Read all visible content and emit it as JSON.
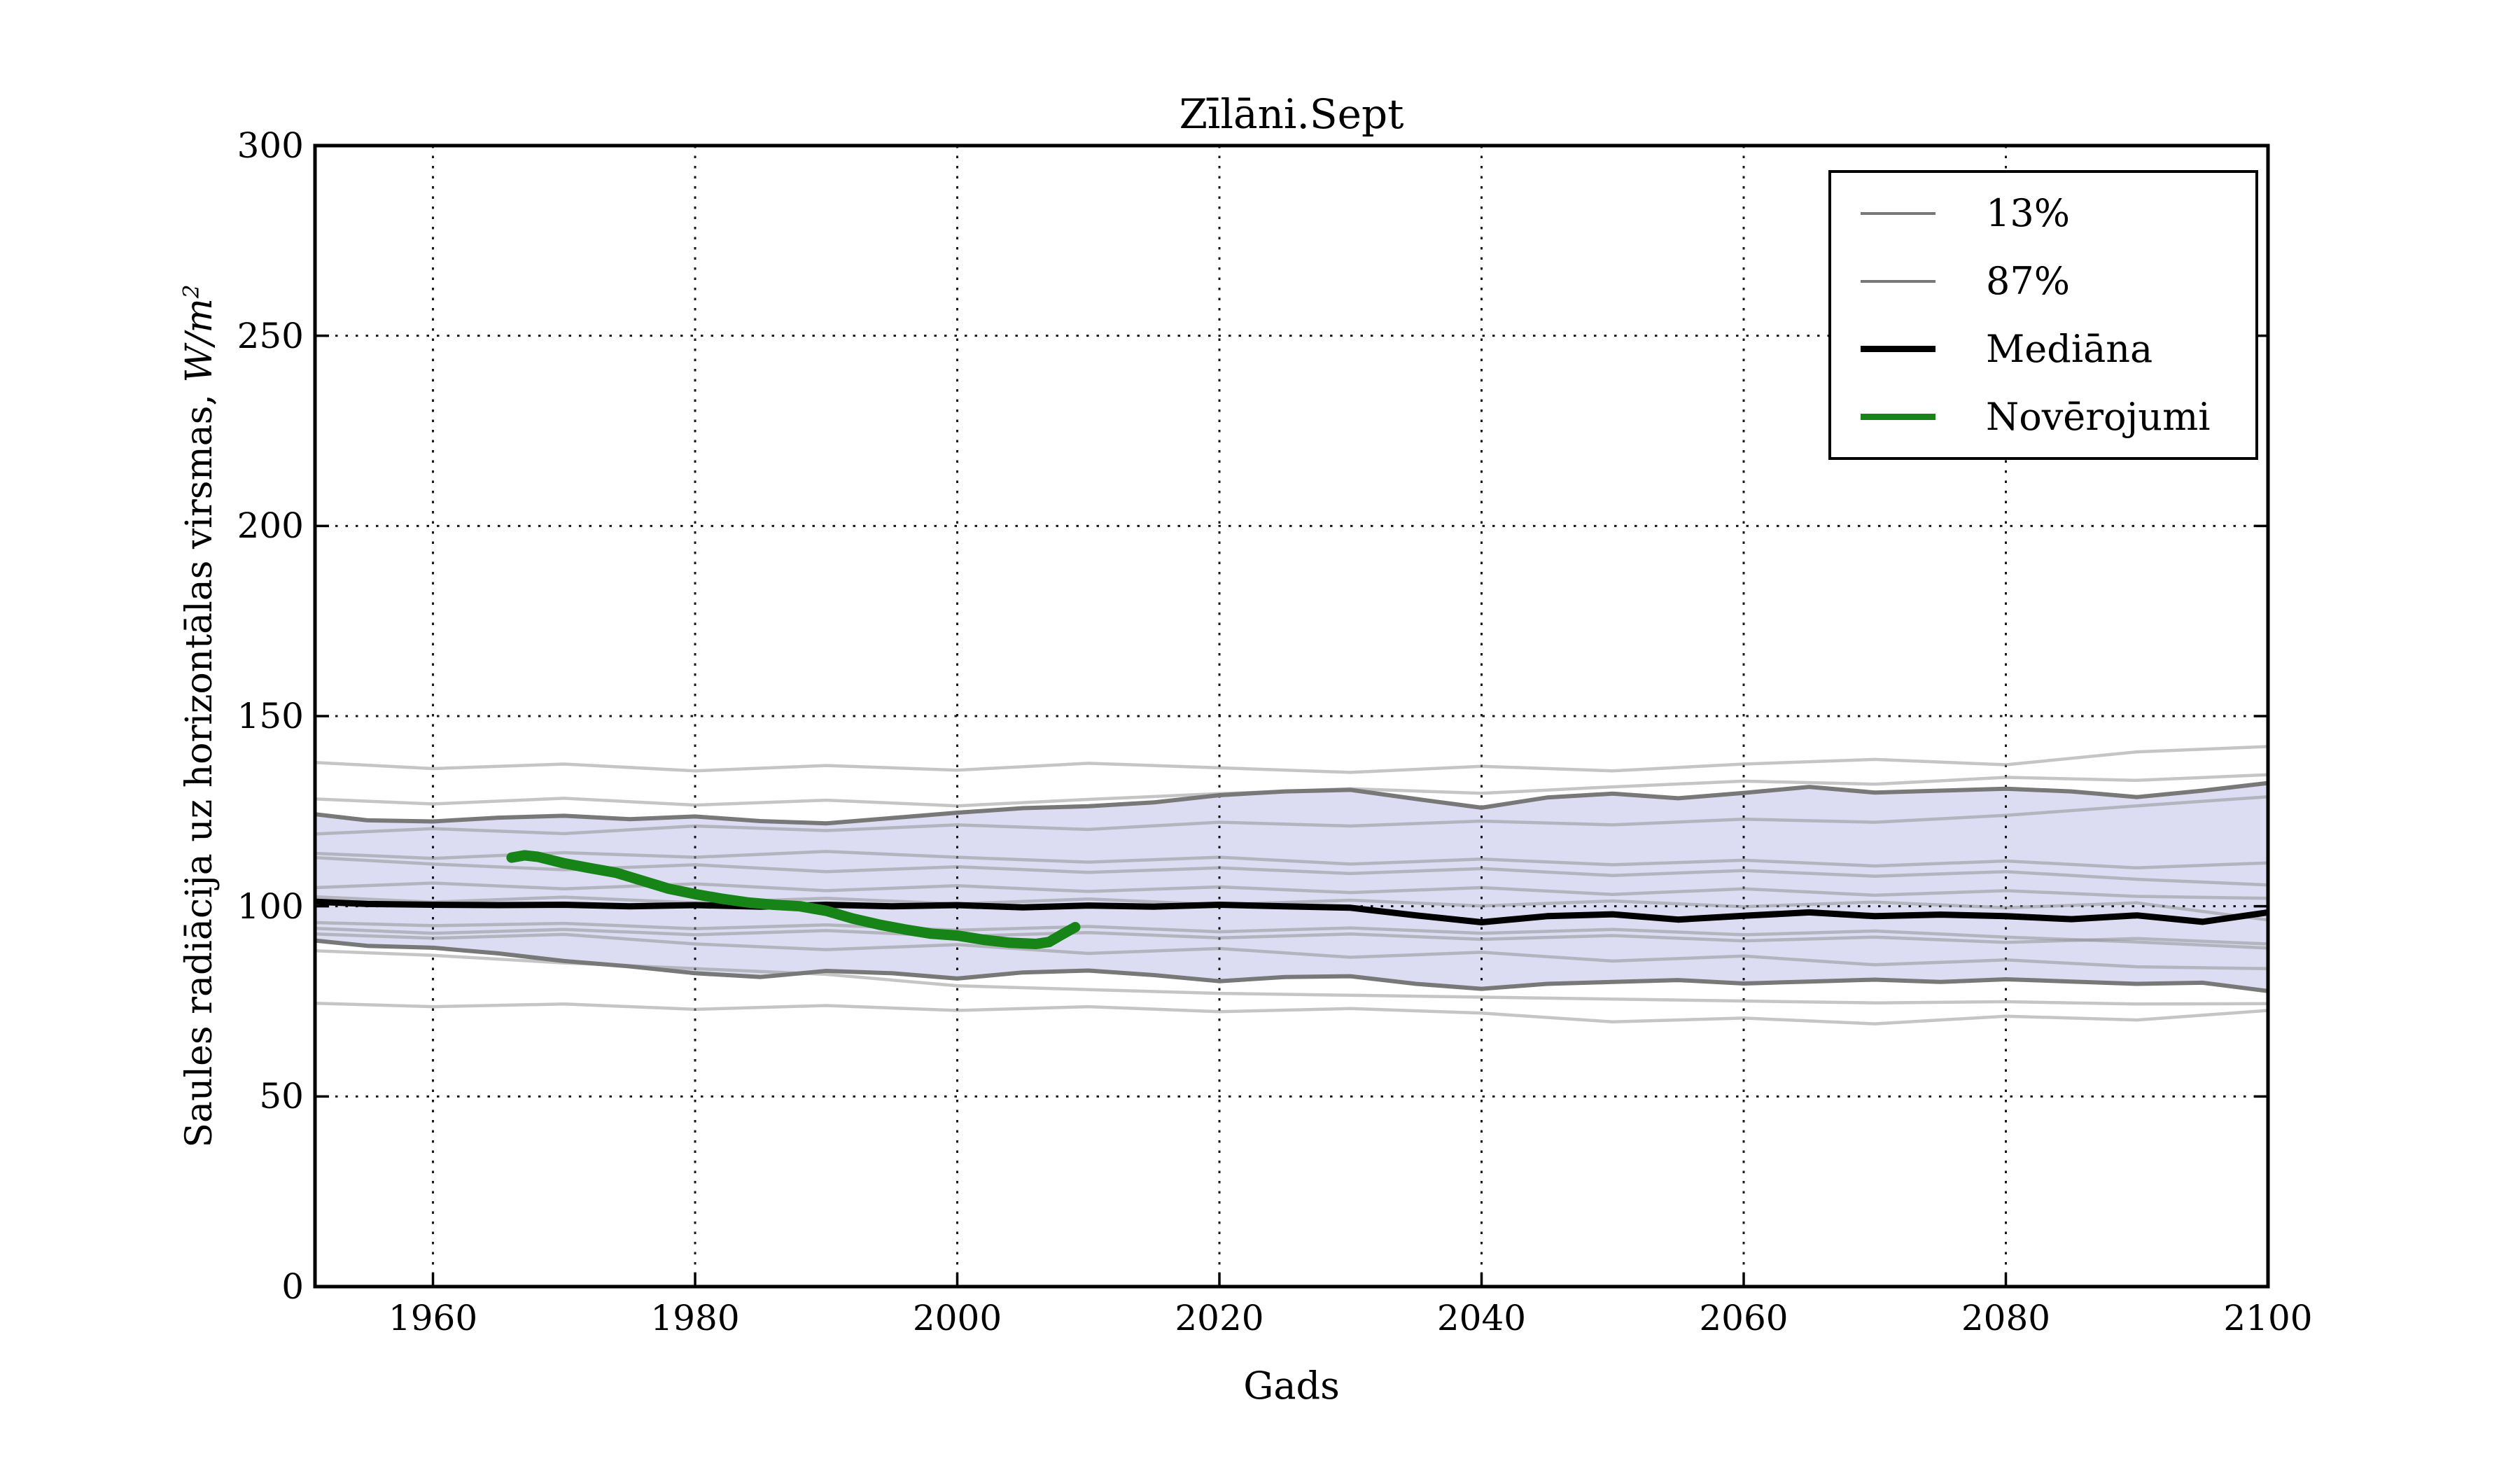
{
  "figure": {
    "title": "Zīlāni.Sept",
    "x_axis_label": "Gads",
    "y_axis_label_text": "Saules radiācija uz horizontālas virsmas, ",
    "y_axis_label_unit": "W/m",
    "y_axis_label_exponent": "2"
  },
  "colors": {
    "background": "#ffffff",
    "band_fill": "#dcdcf2",
    "ensemble": "#8c8c8c",
    "percentile": "#787878",
    "median": "#000000",
    "observations": "#168416",
    "grid": "#000000",
    "spine": "#000000",
    "text": "#000000"
  },
  "legend": {
    "items": [
      {
        "label": "13%",
        "color": "#787878",
        "thickness": 4
      },
      {
        "label": "87%",
        "color": "#787878",
        "thickness": 4
      },
      {
        "label": "Mediāna",
        "color": "#000000",
        "thickness": 9
      },
      {
        "label": "Novērojumi",
        "color": "#168416",
        "thickness": 9
      }
    ]
  },
  "chart_data": {
    "type": "line",
    "title": "Zīlāni.Sept",
    "xlabel": "Gads",
    "ylabel": "Saules radiācija uz horizontālas virsmas, W/m²",
    "xlim": [
      1951,
      2100
    ],
    "ylim": [
      0,
      300
    ],
    "x_ticks": [
      1960,
      1980,
      2000,
      2020,
      2040,
      2060,
      2080,
      2100
    ],
    "y_ticks": [
      0,
      50,
      100,
      150,
      200,
      250,
      300
    ],
    "grid": true,
    "legend_position": "upper right",
    "band_between": [
      "13%",
      "87%"
    ],
    "series": [
      {
        "name": "13%",
        "role": "percentile_lower",
        "x": [
          1951,
          1955,
          1960,
          1965,
          1970,
          1975,
          1980,
          1985,
          1990,
          1995,
          2000,
          2005,
          2010,
          2015,
          2020,
          2025,
          2030,
          2035,
          2040,
          2045,
          2050,
          2055,
          2060,
          2065,
          2070,
          2075,
          2080,
          2085,
          2090,
          2095,
          2100
        ],
        "y": [
          91.0,
          89.6,
          89.1,
          87.6,
          85.6,
          84.2,
          82.4,
          81.4,
          83.0,
          82.4,
          81.0,
          82.6,
          83.1,
          81.9,
          80.3,
          81.4,
          81.6,
          79.6,
          78.3,
          79.6,
          80.1,
          80.6,
          79.7,
          80.2,
          80.7,
          80.1,
          80.8,
          80.2,
          79.6,
          79.9,
          77.7
        ]
      },
      {
        "name": "87%",
        "role": "percentile_upper",
        "x": [
          1951,
          1955,
          1960,
          1965,
          1970,
          1975,
          1980,
          1985,
          1990,
          1995,
          2000,
          2005,
          2010,
          2015,
          2020,
          2025,
          2030,
          2035,
          2040,
          2045,
          2050,
          2055,
          2060,
          2065,
          2070,
          2075,
          2080,
          2085,
          2090,
          2095,
          2100
        ],
        "y": [
          124.2,
          122.6,
          122.3,
          123.3,
          123.8,
          122.9,
          123.6,
          122.4,
          121.8,
          123.2,
          124.6,
          125.8,
          126.3,
          127.3,
          129.2,
          130.2,
          130.6,
          128.2,
          125.9,
          128.6,
          129.6,
          128.4,
          129.8,
          131.4,
          129.9,
          130.4,
          130.9,
          130.2,
          128.7,
          130.4,
          132.4
        ]
      },
      {
        "name": "Mediāna",
        "role": "median",
        "x": [
          1951,
          1955,
          1960,
          1965,
          1970,
          1975,
          1980,
          1985,
          1990,
          1995,
          2000,
          2005,
          2010,
          2015,
          2020,
          2025,
          2030,
          2035,
          2040,
          2045,
          2050,
          2055,
          2060,
          2065,
          2070,
          2075,
          2080,
          2085,
          2090,
          2095,
          2100
        ],
        "y": [
          101.2,
          100.6,
          100.4,
          100.3,
          100.4,
          100.0,
          100.3,
          99.9,
          100.4,
          100.0,
          100.3,
          99.7,
          100.2,
          99.9,
          100.4,
          100.0,
          99.6,
          97.6,
          95.8,
          97.4,
          97.9,
          96.5,
          97.5,
          98.4,
          97.4,
          97.8,
          97.4,
          96.6,
          97.6,
          95.9,
          98.4
        ]
      },
      {
        "name": "Novērojumi",
        "role": "observations",
        "x": [
          1966,
          1967,
          1968,
          1970,
          1972,
          1974,
          1976,
          1978,
          1980,
          1982,
          1984,
          1986,
          1988,
          1990,
          1992,
          1994,
          1996,
          1998,
          2000,
          2002,
          2004,
          2006,
          2007,
          2008,
          2009
        ],
        "y": [
          112.8,
          113.4,
          113.0,
          111.3,
          110.0,
          108.8,
          106.7,
          104.6,
          103.2,
          102.0,
          101.0,
          100.4,
          100.0,
          98.8,
          96.8,
          95.2,
          93.9,
          92.8,
          92.3,
          91.2,
          90.4,
          90.1,
          90.6,
          92.6,
          94.5
        ]
      }
    ],
    "ensemble_runs": {
      "x": [
        1951,
        1960,
        1970,
        1980,
        1990,
        2000,
        2010,
        2020,
        2030,
        2040,
        2050,
        2060,
        2070,
        2080,
        2090,
        2100
      ],
      "lines": [
        [
          137.8,
          136.2,
          137.4,
          135.6,
          137.0,
          135.8,
          137.6,
          136.4,
          135.2,
          136.8,
          135.6,
          137.4,
          138.6,
          137.2,
          140.6,
          142.0
        ],
        [
          128.2,
          126.9,
          128.4,
          126.6,
          127.9,
          126.4,
          128.1,
          129.6,
          130.9,
          129.7,
          131.4,
          132.9,
          132.1,
          133.9,
          133.1,
          134.6
        ],
        [
          119.0,
          120.4,
          119.1,
          121.1,
          119.9,
          121.4,
          120.2,
          122.1,
          121.1,
          122.4,
          121.4,
          122.9,
          122.1,
          123.9,
          126.4,
          128.8
        ],
        [
          113.9,
          112.6,
          114.1,
          112.9,
          114.4,
          112.9,
          111.6,
          112.9,
          111.1,
          112.4,
          110.9,
          112.1,
          110.6,
          111.9,
          110.1,
          111.4
        ],
        [
          112.8,
          111.1,
          109.6,
          110.9,
          109.1,
          110.4,
          108.9,
          110.1,
          108.6,
          109.9,
          108.1,
          109.4,
          107.9,
          109.1,
          107.1,
          105.6
        ],
        [
          104.9,
          106.1,
          104.6,
          105.9,
          104.1,
          105.4,
          103.9,
          105.1,
          103.6,
          104.9,
          103.1,
          104.6,
          102.9,
          104.1,
          102.6,
          102.1
        ],
        [
          102.5,
          101.1,
          102.4,
          100.9,
          102.1,
          100.6,
          101.9,
          100.4,
          101.6,
          100.1,
          101.4,
          99.9,
          101.1,
          99.6,
          100.9,
          96.4
        ],
        [
          95.7,
          94.9,
          95.5,
          94.1,
          95.1,
          93.7,
          94.7,
          93.3,
          94.3,
          92.9,
          93.9,
          92.5,
          93.5,
          91.9,
          90.6,
          89.0
        ],
        [
          94.2,
          92.9,
          93.9,
          92.5,
          93.6,
          92.1,
          93.1,
          91.7,
          92.7,
          91.3,
          92.3,
          90.9,
          91.9,
          90.5,
          91.5,
          90.1
        ],
        [
          92.7,
          91.6,
          92.6,
          90.1,
          88.6,
          89.9,
          87.6,
          88.9,
          86.6,
          87.9,
          85.6,
          86.9,
          84.6,
          85.9,
          84.1,
          83.6
        ],
        [
          88.3,
          87.1,
          85.1,
          83.6,
          82.1,
          79.1,
          78.1,
          77.1,
          76.6,
          76.1,
          75.6,
          75.1,
          74.6,
          74.9,
          74.3,
          74.4
        ],
        [
          74.5,
          73.6,
          74.3,
          72.9,
          73.9,
          72.6,
          73.6,
          72.3,
          73.1,
          71.9,
          69.6,
          70.6,
          69.1,
          71.1,
          70.1,
          72.6
        ]
      ]
    }
  }
}
